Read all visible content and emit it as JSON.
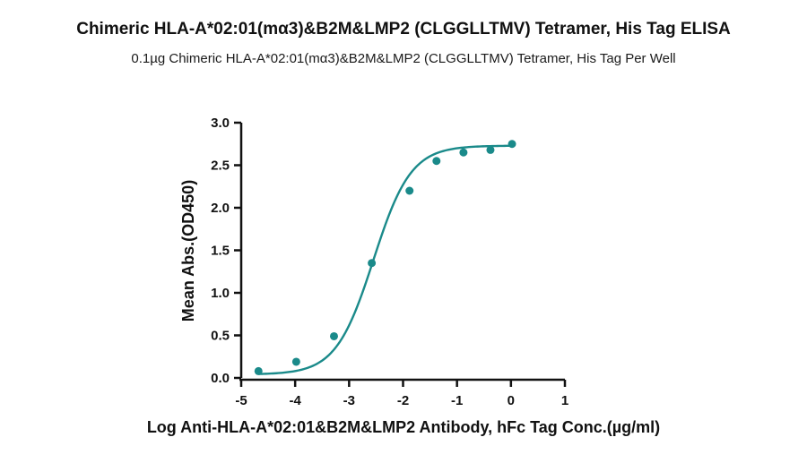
{
  "chart_data": {
    "type": "scatter",
    "title": "Chimeric HLA-A*02:01(mα3)&B2M&LMP2 (CLGGLLTMV) Tetramer, His Tag ELISA",
    "subtitle": "0.1µg Chimeric HLA-A*02:01(mα3)&B2M&LMP2 (CLGGLLTMV) Tetramer, His Tag Per Well",
    "xlabel": "Log Anti-HLA-A*02:01&B2M&LMP2 Antibody, hFc Tag Conc.(µg/ml)",
    "ylabel": "Mean Abs.(OD450)",
    "xlim": [
      -5,
      1
    ],
    "ylim": [
      0,
      3
    ],
    "x_ticks": [
      -5,
      -4,
      -3,
      -2,
      -1,
      0,
      1
    ],
    "y_ticks": [
      0.0,
      0.5,
      1.0,
      1.5,
      2.0,
      2.5,
      3.0
    ],
    "x_tick_labels": [
      "-5",
      "-4",
      "-3",
      "-2",
      "-1",
      "0",
      "1"
    ],
    "y_tick_labels": [
      "0.0",
      "0.5",
      "1.0",
      "1.5",
      "2.0",
      "2.5",
      "3.0"
    ],
    "series": [
      {
        "x": [
          -4.68,
          -3.98,
          -3.28,
          -2.58,
          -1.88,
          -1.38,
          -0.88,
          -0.38,
          0.02
        ],
        "y": [
          0.08,
          0.19,
          0.49,
          1.35,
          2.2,
          2.55,
          2.65,
          2.68,
          2.75
        ],
        "fit": "four-parameter-logistic",
        "color": "#1a8a8a"
      }
    ],
    "grid": false,
    "legend": "none"
  }
}
